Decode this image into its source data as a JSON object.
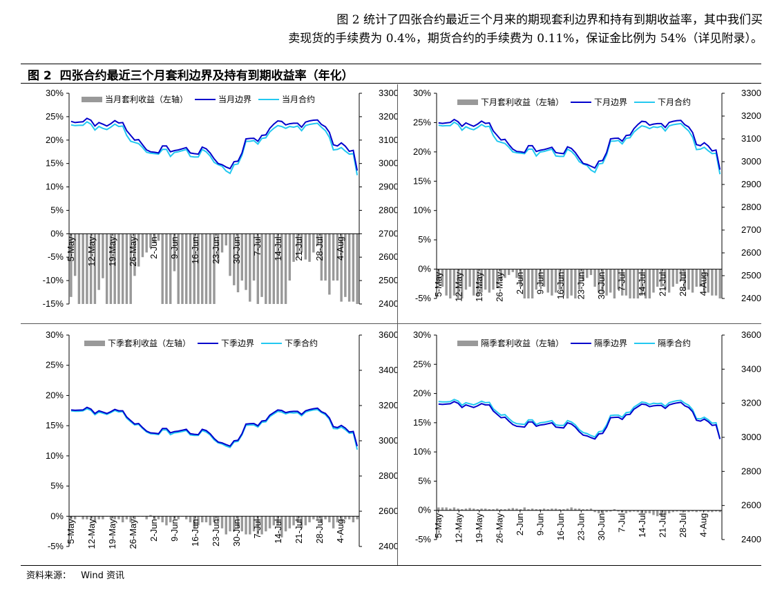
{
  "intro": {
    "line1": "图 2 统计了四张合约最近三个月来的期现套利边界和持有到期收益率，其中我们买",
    "line2": "卖现货的手续费为 0.4%，期货合约的手续费为 0.11%，保证金比例为 54%（详见附录）。"
  },
  "figure": {
    "label": "图 2",
    "title": "四张合约最近三个月套利边界及持有到期收益率（年化）"
  },
  "source": {
    "label": "资料来源：",
    "text": "Wind 资讯"
  },
  "colors": {
    "bar": "#999999",
    "boundary": "#0000cc",
    "contract": "#22c8f0"
  },
  "chart_data": [
    {
      "type": "combo-bar-line",
      "legend": [
        "当月套利收益（左轴）",
        "当月边界",
        "当月合约"
      ],
      "left_axis": {
        "ticks": [
          "30%",
          "25%",
          "20%",
          "15%",
          "10%",
          "5%",
          "0%",
          "-5%",
          "-10%",
          "-15%"
        ],
        "ylim": [
          -15,
          30
        ]
      },
      "right_axis": {
        "ticks": [
          "3300",
          "3200",
          "3100",
          "3000",
          "2900",
          "2800",
          "2700",
          "2600",
          "2500",
          "2400"
        ],
        "ylim": [
          2400,
          3300
        ]
      },
      "x_ticks": [
        "5-May",
        "12-May",
        "19-May",
        "26-May",
        "2-Jun",
        "9-Jun",
        "16-Jun",
        "23-Jun",
        "30-Jun",
        "7-Jul",
        "14-Jul",
        "21-Jul",
        "28-Jul",
        "4-Aug"
      ],
      "bars": [
        -13.5,
        -9.0,
        -15.0,
        -15.0,
        -15.0,
        -15.0,
        -15.0,
        -12.0,
        -9.5,
        -15.0,
        -15.0,
        -15.0,
        -15.0,
        -15.0,
        -15.0,
        -15.0,
        -9.0,
        -7.0,
        -5.0,
        -4.0,
        -3.0,
        -2.0,
        -1.5,
        -15.0,
        -15.0,
        -15.0,
        -8.0,
        -15.0,
        -15.0,
        -15.0,
        -15.0,
        -15.0,
        -15.0,
        -15.0,
        -15.0,
        -15.0,
        -15.0,
        -6.0,
        -4.0,
        -2.5,
        -9.0,
        -11.0,
        -12.5,
        -10.0,
        -12.0,
        -14.5,
        -10.0,
        -15.0,
        -13.5,
        -15.0,
        -15.0,
        -15.0,
        -15.0,
        -15.0,
        -15.0,
        -10.0,
        -6.0,
        -5.0,
        -4.0,
        -5.5,
        -6.0,
        -4.0,
        -2.5,
        -10.0,
        -10.0,
        -13.0,
        -10.0,
        -10.0,
        -14.5,
        -13.5,
        -14.5,
        -14.5,
        -15.0
      ],
      "boundary": [
        3180,
        3175,
        3177,
        3178,
        3193,
        3185,
        3160,
        3175,
        3168,
        3160,
        3170,
        3183,
        3173,
        3175,
        3140,
        3120,
        3100,
        3102,
        3080,
        3058,
        3050,
        3048,
        3045,
        3075,
        3075,
        3050,
        3055,
        3058,
        3063,
        3068,
        3045,
        3042,
        3040,
        3070,
        3063,
        3045,
        3020,
        3000,
        2995,
        2985,
        2978,
        3008,
        3010,
        3045,
        3105,
        3107,
        3108,
        3095,
        3120,
        3122,
        3150,
        3168,
        3182,
        3180,
        3165,
        3170,
        3172,
        3172,
        3155,
        3177,
        3182,
        3185,
        3186,
        3167,
        3157,
        3133,
        3080,
        3075,
        3088,
        3074,
        3052,
        3056,
        2970
      ],
      "contract": [
        3165,
        3162,
        3163,
        3163,
        3178,
        3168,
        3143,
        3158,
        3150,
        3145,
        3155,
        3168,
        3158,
        3160,
        3120,
        3095,
        3090,
        3085,
        3068,
        3048,
        3044,
        3042,
        3040,
        3060,
        3060,
        3030,
        3047,
        3050,
        3055,
        3060,
        3030,
        3028,
        3028,
        3060,
        3050,
        3032,
        3005,
        2995,
        2988,
        2968,
        2958,
        2995,
        2998,
        3035,
        3095,
        3095,
        3098,
        3083,
        3107,
        3110,
        3135,
        3150,
        3162,
        3158,
        3150,
        3158,
        3155,
        3160,
        3140,
        3162,
        3167,
        3170,
        3172,
        3155,
        3140,
        3112,
        3058,
        3060,
        3068,
        3053,
        3040,
        3042,
        2950
      ]
    },
    {
      "type": "combo-bar-line",
      "legend": [
        "下月套利收益（左轴）",
        "下月边界",
        "下月合约"
      ],
      "left_axis": {
        "ticks": [
          "30%",
          "25%",
          "20%",
          "15%",
          "10%",
          "5%",
          "0%",
          "-5%"
        ],
        "ylim": [
          -5,
          30
        ]
      },
      "right_axis": {
        "ticks": [
          "3300",
          "3200",
          "3100",
          "3000",
          "2900",
          "2800",
          "2700",
          "2600",
          "2500",
          "2400"
        ],
        "ylim": [
          2400,
          3300
        ]
      },
      "x_ticks": [
        "5-May",
        "12-May",
        "19-May",
        "26-May",
        "2-Jun",
        "9-Jun",
        "16-Jun",
        "23-Jun",
        "30-Jun",
        "7-Jul",
        "14-Jul",
        "21-Jul",
        "28-Jul",
        "4-Aug"
      ],
      "bars": [
        -2.5,
        -3.0,
        -4.5,
        -5.0,
        -4.5,
        -5.0,
        -5.0,
        -3.5,
        -3.0,
        -4.5,
        -4.5,
        -4.0,
        -3.5,
        -4.0,
        -3.5,
        -3.0,
        -2.0,
        -1.5,
        -1.0,
        -0.5,
        -1.5,
        -3.0,
        -5.0,
        -5.0,
        -5.0,
        -3.5,
        -3.0,
        -3.0,
        -4.0,
        -4.5,
        -4.0,
        -3.5,
        -4.5,
        -5.0,
        -4.5,
        -5.0,
        -3.5,
        -2.0,
        -1.5,
        -1.0,
        -3.0,
        -4.0,
        -4.0,
        -4.5,
        -4.0,
        -5.0,
        -3.5,
        -4.5,
        -4.5,
        -5.0,
        -5.0,
        -5.0,
        -4.5,
        -5.0,
        -5.0,
        -4.0,
        -3.0,
        -3.0,
        -3.5,
        -4.0,
        -3.0,
        -2.5,
        -2.0,
        -3.5,
        -3.5,
        -4.0,
        -3.0,
        -3.0,
        -4.0,
        -4.0,
        -4.5,
        -4.5,
        -5.0
      ],
      "boundary": [
        3170,
        3168,
        3170,
        3172,
        3185,
        3175,
        3155,
        3170,
        3162,
        3155,
        3165,
        3178,
        3168,
        3170,
        3135,
        3115,
        3095,
        3098,
        3075,
        3055,
        3045,
        3043,
        3040,
        3070,
        3070,
        3045,
        3050,
        3053,
        3058,
        3063,
        3040,
        3037,
        3035,
        3065,
        3058,
        3040,
        3015,
        2992,
        2988,
        2980,
        2972,
        3002,
        3005,
        3040,
        3100,
        3102,
        3103,
        3090,
        3115,
        3117,
        3145,
        3163,
        3177,
        3175,
        3160,
        3165,
        3167,
        3167,
        3150,
        3172,
        3177,
        3180,
        3181,
        3162,
        3152,
        3128,
        3075,
        3070,
        3083,
        3069,
        3047,
        3051,
        2965
      ],
      "contract": [
        3160,
        3157,
        3158,
        3158,
        3173,
        3163,
        3138,
        3153,
        3145,
        3140,
        3150,
        3163,
        3153,
        3155,
        3115,
        3090,
        3085,
        3080,
        3063,
        3043,
        3039,
        3037,
        3035,
        3055,
        3055,
        3025,
        3042,
        3045,
        3050,
        3055,
        3025,
        3023,
        3023,
        3055,
        3045,
        3027,
        3000,
        2990,
        2983,
        2963,
        2953,
        2990,
        2993,
        3030,
        3090,
        3090,
        3093,
        3078,
        3102,
        3105,
        3130,
        3145,
        3157,
        3153,
        3145,
        3153,
        3150,
        3155,
        3135,
        3157,
        3162,
        3165,
        3167,
        3150,
        3135,
        3107,
        3053,
        3055,
        3063,
        3048,
        3035,
        3037,
        2945
      ]
    },
    {
      "type": "combo-bar-line",
      "legend": [
        "下季套利收益（左轴）",
        "下季边界",
        "下季合约"
      ],
      "left_axis": {
        "ticks": [
          "30%",
          "25%",
          "20%",
          "15%",
          "10%",
          "5%",
          "0%",
          "-5%"
        ],
        "ylim": [
          -5,
          30
        ]
      },
      "right_axis": {
        "ticks": [
          "3600",
          "3400",
          "3200",
          "3000",
          "2800",
          "2600",
          "2400"
        ],
        "ylim": [
          2400,
          3600
        ]
      },
      "x_ticks": [
        "5-May",
        "12-May",
        "19-May",
        "26-May",
        "2-Jun",
        "9-Jun",
        "16-Jun",
        "23-Jun",
        "30-Jun",
        "7-Jul",
        "14-Jul",
        "21-Jul",
        "28-Jul",
        "4-Aug"
      ],
      "bars": [
        -0.5,
        -0.5,
        0.0,
        -0.5,
        -0.5,
        -0.5,
        -1.0,
        -0.5,
        -0.5,
        0.0,
        -0.5,
        -0.5,
        -0.5,
        -1.0,
        -0.5,
        -1.0,
        -0.5,
        0.0,
        0.0,
        -0.5,
        0.2,
        -0.5,
        -0.5,
        -1.0,
        -1.5,
        -1.0,
        -0.5,
        -0.5,
        0.0,
        -0.5,
        -1.0,
        -2.0,
        -1.5,
        -1.0,
        -1.0,
        -1.5,
        -1.0,
        -1.0,
        -2.0,
        -3.0,
        -2.5,
        -2.5,
        -2.0,
        -2.5,
        -3.0,
        -3.0,
        -2.5,
        -3.0,
        -3.0,
        -2.5,
        -2.0,
        -1.5,
        -1.5,
        -3.5,
        -2.5,
        -2.0,
        -1.5,
        -1.0,
        -2.0,
        -1.5,
        -1.0,
        -0.5,
        -0.5,
        -1.0,
        -0.5,
        -1.0,
        -2.0,
        -1.0,
        -1.0,
        -0.5,
        -0.5,
        -1.0,
        -0.5
      ],
      "boundary": [
        3175,
        3173,
        3174,
        3175,
        3190,
        3180,
        3155,
        3170,
        3163,
        3155,
        3165,
        3178,
        3170,
        3170,
        3135,
        3115,
        3095,
        3098,
        3075,
        3055,
        3045,
        3043,
        3040,
        3070,
        3070,
        3045,
        3052,
        3055,
        3060,
        3065,
        3040,
        3037,
        3035,
        3065,
        3058,
        3040,
        3013,
        2993,
        2988,
        2978,
        2970,
        3000,
        3003,
        3040,
        3095,
        3097,
        3098,
        3085,
        3112,
        3115,
        3145,
        3160,
        3175,
        3172,
        3160,
        3165,
        3167,
        3167,
        3150,
        3170,
        3177,
        3182,
        3185,
        3165,
        3155,
        3130,
        3080,
        3075,
        3087,
        3072,
        3050,
        3053,
        2970
      ],
      "contract": [
        3170,
        3168,
        3168,
        3170,
        3182,
        3173,
        3148,
        3163,
        3157,
        3150,
        3160,
        3172,
        3163,
        3165,
        3128,
        3108,
        3090,
        3093,
        3070,
        3050,
        3040,
        3038,
        3035,
        3062,
        3062,
        3035,
        3045,
        3048,
        3053,
        3058,
        3033,
        3030,
        3030,
        3058,
        3050,
        3033,
        3005,
        2988,
        2982,
        2970,
        2962,
        2993,
        2997,
        3033,
        3088,
        3090,
        3090,
        3078,
        3105,
        3108,
        3137,
        3152,
        3167,
        3163,
        3153,
        3160,
        3158,
        3160,
        3142,
        3163,
        3170,
        3175,
        3177,
        3160,
        3148,
        3122,
        3070,
        3068,
        3078,
        3063,
        3043,
        3045,
        2950
      ]
    },
    {
      "type": "combo-bar-line",
      "legend": [
        "隔季套利收益（左轴）",
        "隔季边界",
        "隔季合约"
      ],
      "left_axis": {
        "ticks": [
          "30%",
          "25%",
          "20%",
          "15%",
          "10%",
          "5%",
          "0%",
          "-5%"
        ],
        "ylim": [
          -5,
          30
        ]
      },
      "right_axis": {
        "ticks": [
          "3600",
          "3400",
          "3200",
          "3000",
          "2800",
          "2600",
          "2400"
        ],
        "ylim": [
          2400,
          3600
        ]
      },
      "x_ticks": [
        "5-May",
        "12-May",
        "19-May",
        "26-May",
        "2-Jun",
        "9-Jun",
        "16-Jun",
        "23-Jun",
        "30-Jun",
        "7-Jul",
        "14-Jul",
        "21-Jul",
        "28-Jul",
        "4-Aug"
      ],
      "bars": [
        0.5,
        0.5,
        0.5,
        0.3,
        0.5,
        0.3,
        0.2,
        0.3,
        0.4,
        0.3,
        0.2,
        0.3,
        0.3,
        0.2,
        0.2,
        0.3,
        0.2,
        0.2,
        0.3,
        0.4,
        0.3,
        0.2,
        0.5,
        0.2,
        0.3,
        0.2,
        0.2,
        0.3,
        0.2,
        0.3,
        0.3,
        0.2,
        0.2,
        0.3,
        0.5,
        0.3,
        0.3,
        0.2,
        0.2,
        0.3,
        -0.3,
        -0.5,
        -0.5,
        -0.3,
        -0.2,
        0.2,
        -0.2,
        -0.3,
        -0.5,
        -0.3,
        -0.2,
        -0.3,
        -0.5,
        -0.5,
        -0.5,
        -0.8,
        -1.0,
        -1.0,
        -0.8,
        -0.5,
        -0.3,
        -0.2,
        -0.2,
        -0.3,
        -0.3,
        -0.2,
        -0.3,
        -0.2,
        -0.2,
        -0.3,
        -0.3,
        -0.2,
        -0.3
      ],
      "boundary": [
        3195,
        3193,
        3195,
        3197,
        3210,
        3200,
        3175,
        3190,
        3183,
        3175,
        3185,
        3198,
        3190,
        3190,
        3155,
        3135,
        3115,
        3118,
        3095,
        3075,
        3065,
        3063,
        3060,
        3090,
        3090,
        3065,
        3072,
        3075,
        3080,
        3085,
        3060,
        3057,
        3055,
        3085,
        3078,
        3060,
        3033,
        3013,
        3008,
        2998,
        2990,
        3020,
        3023,
        3060,
        3115,
        3117,
        3118,
        3105,
        3132,
        3135,
        3165,
        3180,
        3195,
        3192,
        3180,
        3185,
        3187,
        3187,
        3170,
        3190,
        3197,
        3202,
        3205,
        3185,
        3175,
        3150,
        3100,
        3095,
        3107,
        3092,
        3070,
        3073,
        2990
      ],
      "contract": [
        3210,
        3208,
        3208,
        3210,
        3222,
        3213,
        3188,
        3203,
        3197,
        3190,
        3200,
        3212,
        3203,
        3205,
        3168,
        3148,
        3130,
        3133,
        3110,
        3090,
        3080,
        3078,
        3075,
        3102,
        3102,
        3075,
        3085,
        3088,
        3093,
        3098,
        3073,
        3070,
        3070,
        3098,
        3090,
        3073,
        3045,
        3028,
        3022,
        3010,
        3002,
        3033,
        3037,
        3073,
        3128,
        3130,
        3130,
        3118,
        3145,
        3148,
        3177,
        3192,
        3207,
        3203,
        3193,
        3200,
        3198,
        3200,
        3182,
        3203,
        3210,
        3215,
        3217,
        3200,
        3188,
        3162,
        3110,
        3108,
        3118,
        3103,
        3083,
        3085,
        2990
      ]
    }
  ]
}
